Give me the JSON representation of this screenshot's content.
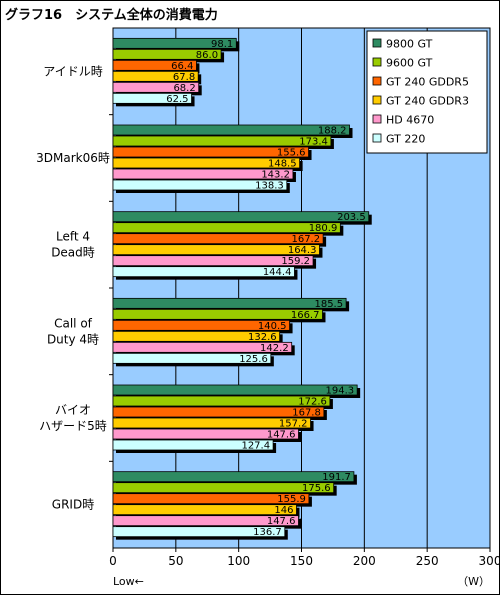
{
  "chart_data": {
    "type": "bar",
    "orientation": "horizontal",
    "title": "グラフ16　システム全体の消費電力",
    "categories": [
      [
        "アイドル時"
      ],
      [
        "3DMark06時"
      ],
      [
        "Left 4",
        "Dead時"
      ],
      [
        "Call of",
        "Duty 4時"
      ],
      [
        "バイオ",
        "ハザード5時"
      ],
      [
        "GRID時"
      ]
    ],
    "series": [
      {
        "name": "9800 GT",
        "color": "#2e8b62",
        "values": [
          98.1,
          188.2,
          203.5,
          185.5,
          194.3,
          191.7
        ]
      },
      {
        "name": "9600 GT",
        "color": "#99cc00",
        "values": [
          86.0,
          173.4,
          180.9,
          166.7,
          172.6,
          175.6
        ]
      },
      {
        "name": "GT 240 GDDR5",
        "color": "#ff6600",
        "values": [
          66.4,
          155.6,
          167.2,
          140.5,
          167.8,
          155.9
        ]
      },
      {
        "name": "GT 240 GDDR3",
        "color": "#ffcc00",
        "values": [
          67.8,
          148.5,
          164.3,
          132.6,
          157.2,
          146
        ]
      },
      {
        "name": "HD 4670",
        "color": "#ff99cc",
        "values": [
          68.2,
          143.2,
          159.2,
          142.2,
          147.6,
          147.6
        ]
      },
      {
        "name": "GT 220",
        "color": "#ccffff",
        "values": [
          62.5,
          138.3,
          144.4,
          125.6,
          127.4,
          136.7
        ]
      }
    ],
    "data_labels": [
      [
        "98.1",
        "86.0",
        "66.4",
        "67.8",
        "68.2",
        "62.5"
      ],
      [
        "188.2",
        "173.4",
        "155.6",
        "148.5",
        "143.2",
        "138.3"
      ],
      [
        "203.5",
        "180.9",
        "167.2",
        "164.3",
        "159.2",
        "144.4"
      ],
      [
        "185.5",
        "166.7",
        "140.5",
        "132.6",
        "142.2",
        "125.6"
      ],
      [
        "194.3",
        "172.6",
        "167.8",
        "157.2",
        "147.6",
        "127.4"
      ],
      [
        "191.7",
        "175.6",
        "155.9",
        "146",
        "147.6",
        "136.7"
      ]
    ],
    "xlim": [
      0,
      300
    ],
    "xticks": [
      0,
      50,
      100,
      150,
      200,
      250,
      300
    ],
    "xlabel": "（W）",
    "axis_note": "Low←",
    "grid": true,
    "legend_position": "top-right",
    "plot_background": "#99ccff"
  }
}
